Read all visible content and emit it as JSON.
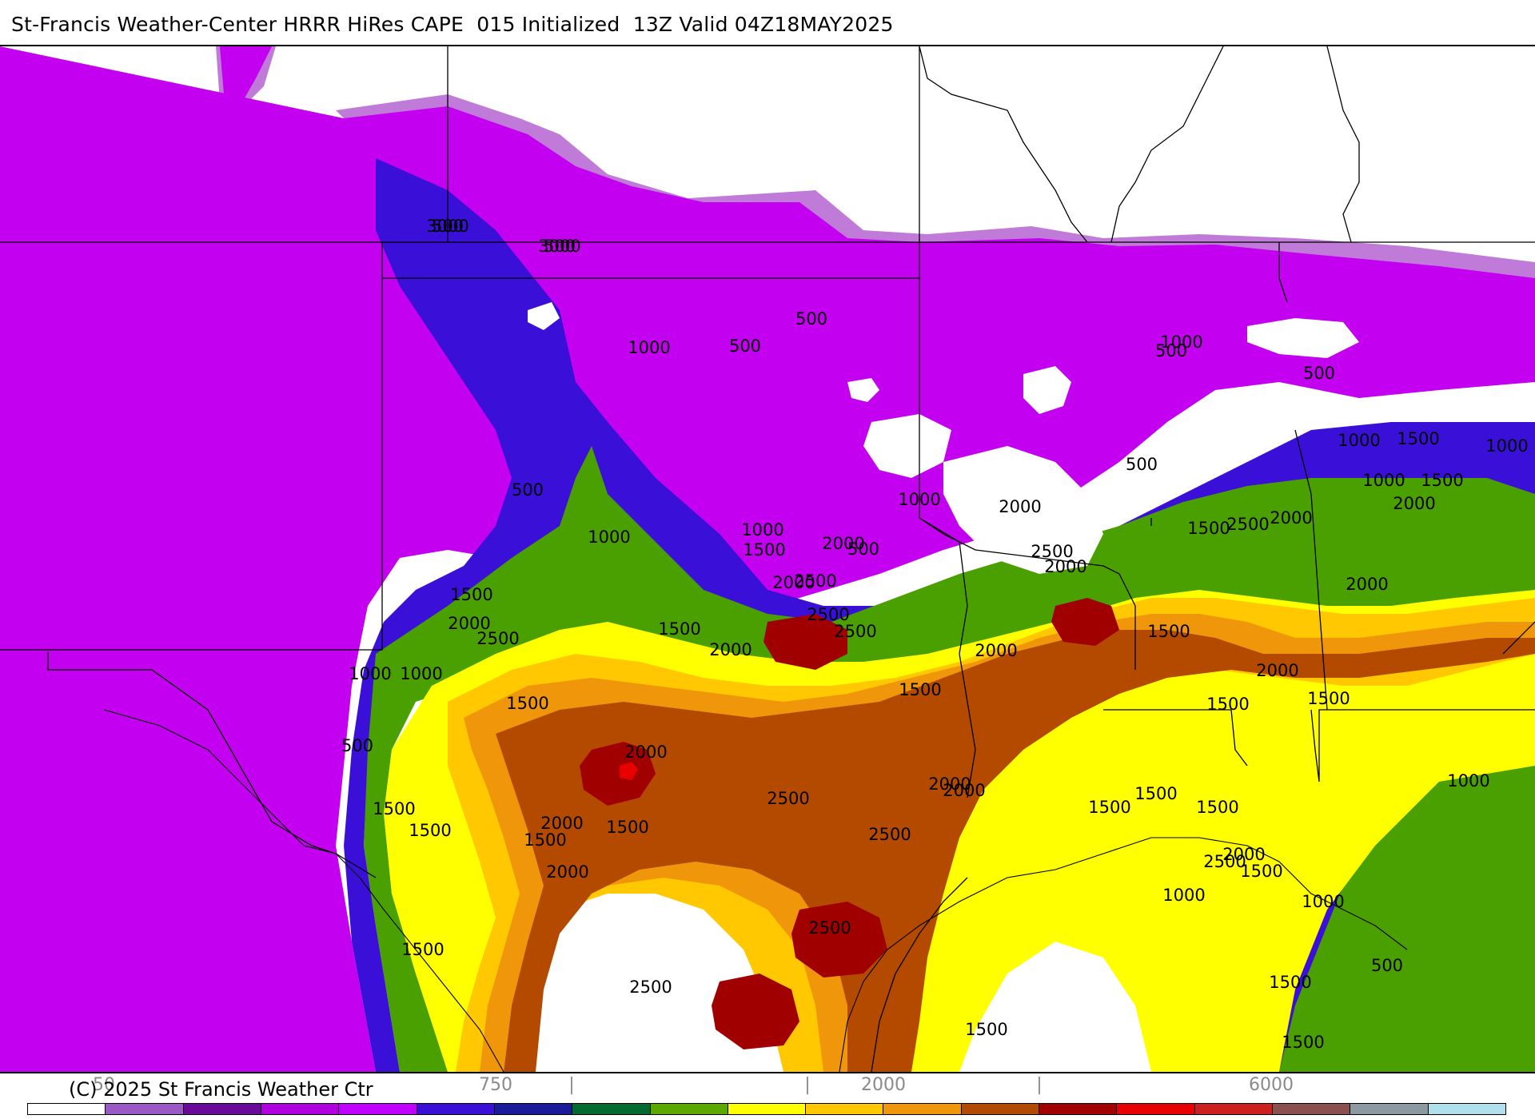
{
  "header": {
    "title": "St-Francis Weather-Center HRRR HiRes CAPE  015 Initialized  13Z Valid 04Z18MAY2025"
  },
  "footer": {
    "copyright": "(C) 2025 St Francis Weather Ctr"
  },
  "colorbar": {
    "tick_labels": [
      "50",
      "750",
      "|",
      "|",
      "2000",
      "|",
      "6000"
    ],
    "colors": [
      "#ffffff",
      "#9b59c5",
      "#6a0a9a",
      "#b000e0",
      "#c000ff",
      "#3a10d8",
      "#1a1a9a",
      "#006a30",
      "#5aa800",
      "#ffff00",
      "#ffc800",
      "#f0960a",
      "#b44a00",
      "#a00000",
      "#e80000",
      "#cc2020",
      "#8a5050",
      "#8a9aa0",
      "#b0e0ec"
    ]
  },
  "map": {
    "field": "CAPE",
    "contour_labels": [
      "500",
      "500",
      "500",
      "500",
      "500",
      "500",
      "500",
      "500",
      "500",
      "500",
      "500",
      "1000",
      "1000",
      "1000",
      "1000",
      "1000",
      "1000",
      "1000",
      "1000",
      "1000",
      "1000",
      "1000",
      "1000",
      "1000",
      "1500",
      "1500",
      "1500",
      "1500",
      "1500",
      "1500",
      "1500",
      "1500",
      "1500",
      "1500",
      "1500",
      "1500",
      "1500",
      "1500",
      "1500",
      "1500",
      "1500",
      "1500",
      "1500",
      "1500",
      "1500",
      "1500",
      "1500",
      "2000",
      "2000",
      "2000",
      "2000",
      "2000",
      "2000",
      "2000",
      "2000",
      "2000",
      "2000",
      "2000",
      "2000",
      "2000",
      "2000",
      "2000",
      "2000",
      "2000",
      "2500",
      "2500",
      "2500",
      "2500",
      "2500",
      "2500",
      "2500",
      "2500",
      "2500",
      "2500",
      "2500",
      "3000",
      "3000"
    ]
  }
}
